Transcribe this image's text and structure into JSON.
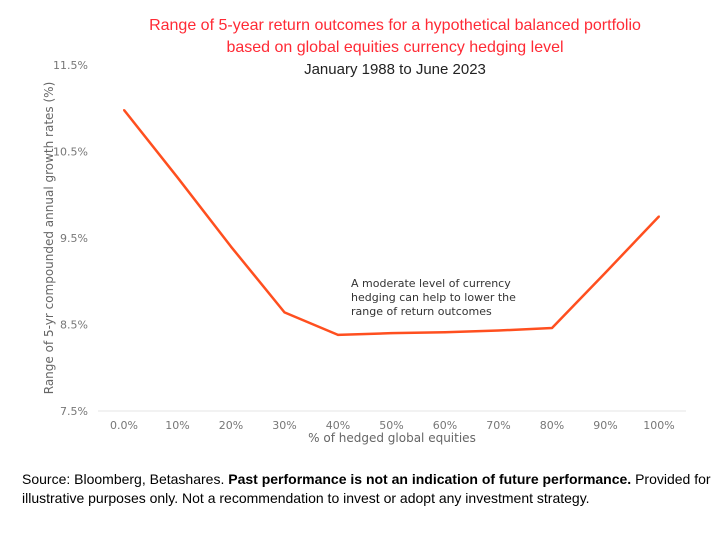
{
  "chart_data": {
    "type": "line",
    "title": "Range of 5-year return outcomes for a hypothetical balanced portfolio",
    "title_line2": "based on global equities currency hedging level",
    "subtitle": "January 1988 to June 2023",
    "xlabel": "% of hedged global equities",
    "ylabel": "Range of 5-yr compounded annual growth rates (%)",
    "categories": [
      "0.0%",
      "10%",
      "20%",
      "30%",
      "40%",
      "50%",
      "60%",
      "70%",
      "80%",
      "90%",
      "100%"
    ],
    "x": [
      0,
      10,
      20,
      30,
      40,
      50,
      60,
      70,
      80,
      90,
      100
    ],
    "series": [
      {
        "name": "Range",
        "color": "#ff4f1f",
        "values": [
          10.98,
          10.2,
          9.4,
          8.64,
          8.38,
          8.4,
          8.41,
          8.43,
          8.46,
          9.1,
          9.75
        ]
      }
    ],
    "ylim": [
      7.5,
      11.5
    ],
    "yticks": [
      "7.5%",
      "8.5%",
      "9.5%",
      "10.5%",
      "11.5%"
    ],
    "ytick_values": [
      7.5,
      8.5,
      9.5,
      10.5,
      11.5
    ],
    "grid": false,
    "annotation": [
      "A moderate level of currency",
      "hedging can help to lower the",
      "range of return outcomes"
    ]
  },
  "footer": {
    "source": "Source: Bloomberg, Betashares. ",
    "bold": "Past performance is not an indication of future performance.",
    "rest": " Provided for illustrative purposes only. Not a recommendation to invest or adopt any investment strategy."
  }
}
